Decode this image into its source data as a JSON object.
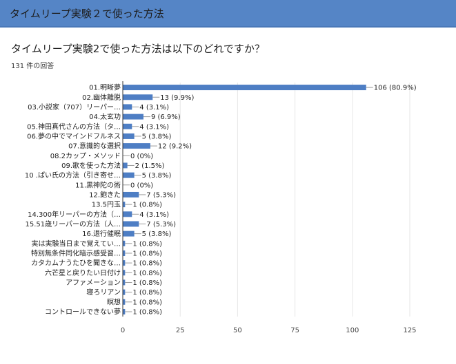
{
  "header": {
    "title": "タイムリープ実験２で使った方法"
  },
  "question": {
    "title": "タイムリープ実験2で使った方法は以下のどれですか？",
    "response_count": "131 件の回答"
  },
  "colors": {
    "header": "#5585c6",
    "bar": "#4e7ec4",
    "grid": "#e6e6e6",
    "axis": "#333333"
  },
  "chart_data": {
    "type": "bar",
    "orientation": "horizontal",
    "categories": [
      "01.明晰夢",
      "02.幽体離脱",
      "03.小説家（707）リーパー…",
      "04.太玄功",
      "05.神田真代さんの方法（タ…",
      "06.夢の中でマインドフルネス",
      "07.意識的な選択",
      "08.2カップ・メソッド",
      "09.歌を使った方法",
      "10 .ぱい氏の方法（引き寄せ…",
      "11.黒神陀の術",
      "12.飽きた",
      "13.5円玉",
      "14.300年リーパーの方法（…",
      "15.51歳リーパーの方法（人…",
      "16.退行催眠",
      "実は実験当日まで覚えてい…",
      "特別無条件同化暗示感受習…",
      "カタカムナうたひを聞きな…",
      "六芒星と戻りたい日付け",
      "アファメーション",
      "寝ろリアン",
      "瞑想",
      "コントロールできない夢"
    ],
    "values": [
      106,
      13,
      4,
      9,
      4,
      5,
      12,
      0,
      2,
      5,
      0,
      7,
      1,
      4,
      7,
      5,
      1,
      1,
      1,
      1,
      1,
      1,
      1,
      1
    ],
    "data_labels": [
      "106 (80.9%)",
      "13 (9.9%)",
      "4 (3.1%)",
      "9 (6.9%)",
      "4 (3.1%)",
      "5 (3.8%)",
      "12 (9.2%)",
      "0 (0%)",
      "2 (1.5%)",
      "5 (3.8%)",
      "0 (0%)",
      "7 (5.3%)",
      "1 (0.8%)",
      "4 (3.1%)",
      "7 (5.3%)",
      "5 (3.8%)",
      "1 (0.8%)",
      "1 (0.8%)",
      "1 (0.8%)",
      "1 (0.8%)",
      "1 (0.8%)",
      "1 (0.8%)",
      "1 (0.8%)",
      "1 (0.8%)"
    ],
    "xlim": [
      0,
      125
    ],
    "xticks": [
      0,
      25,
      50,
      75,
      100,
      125
    ],
    "grid": true,
    "legend": "none"
  }
}
